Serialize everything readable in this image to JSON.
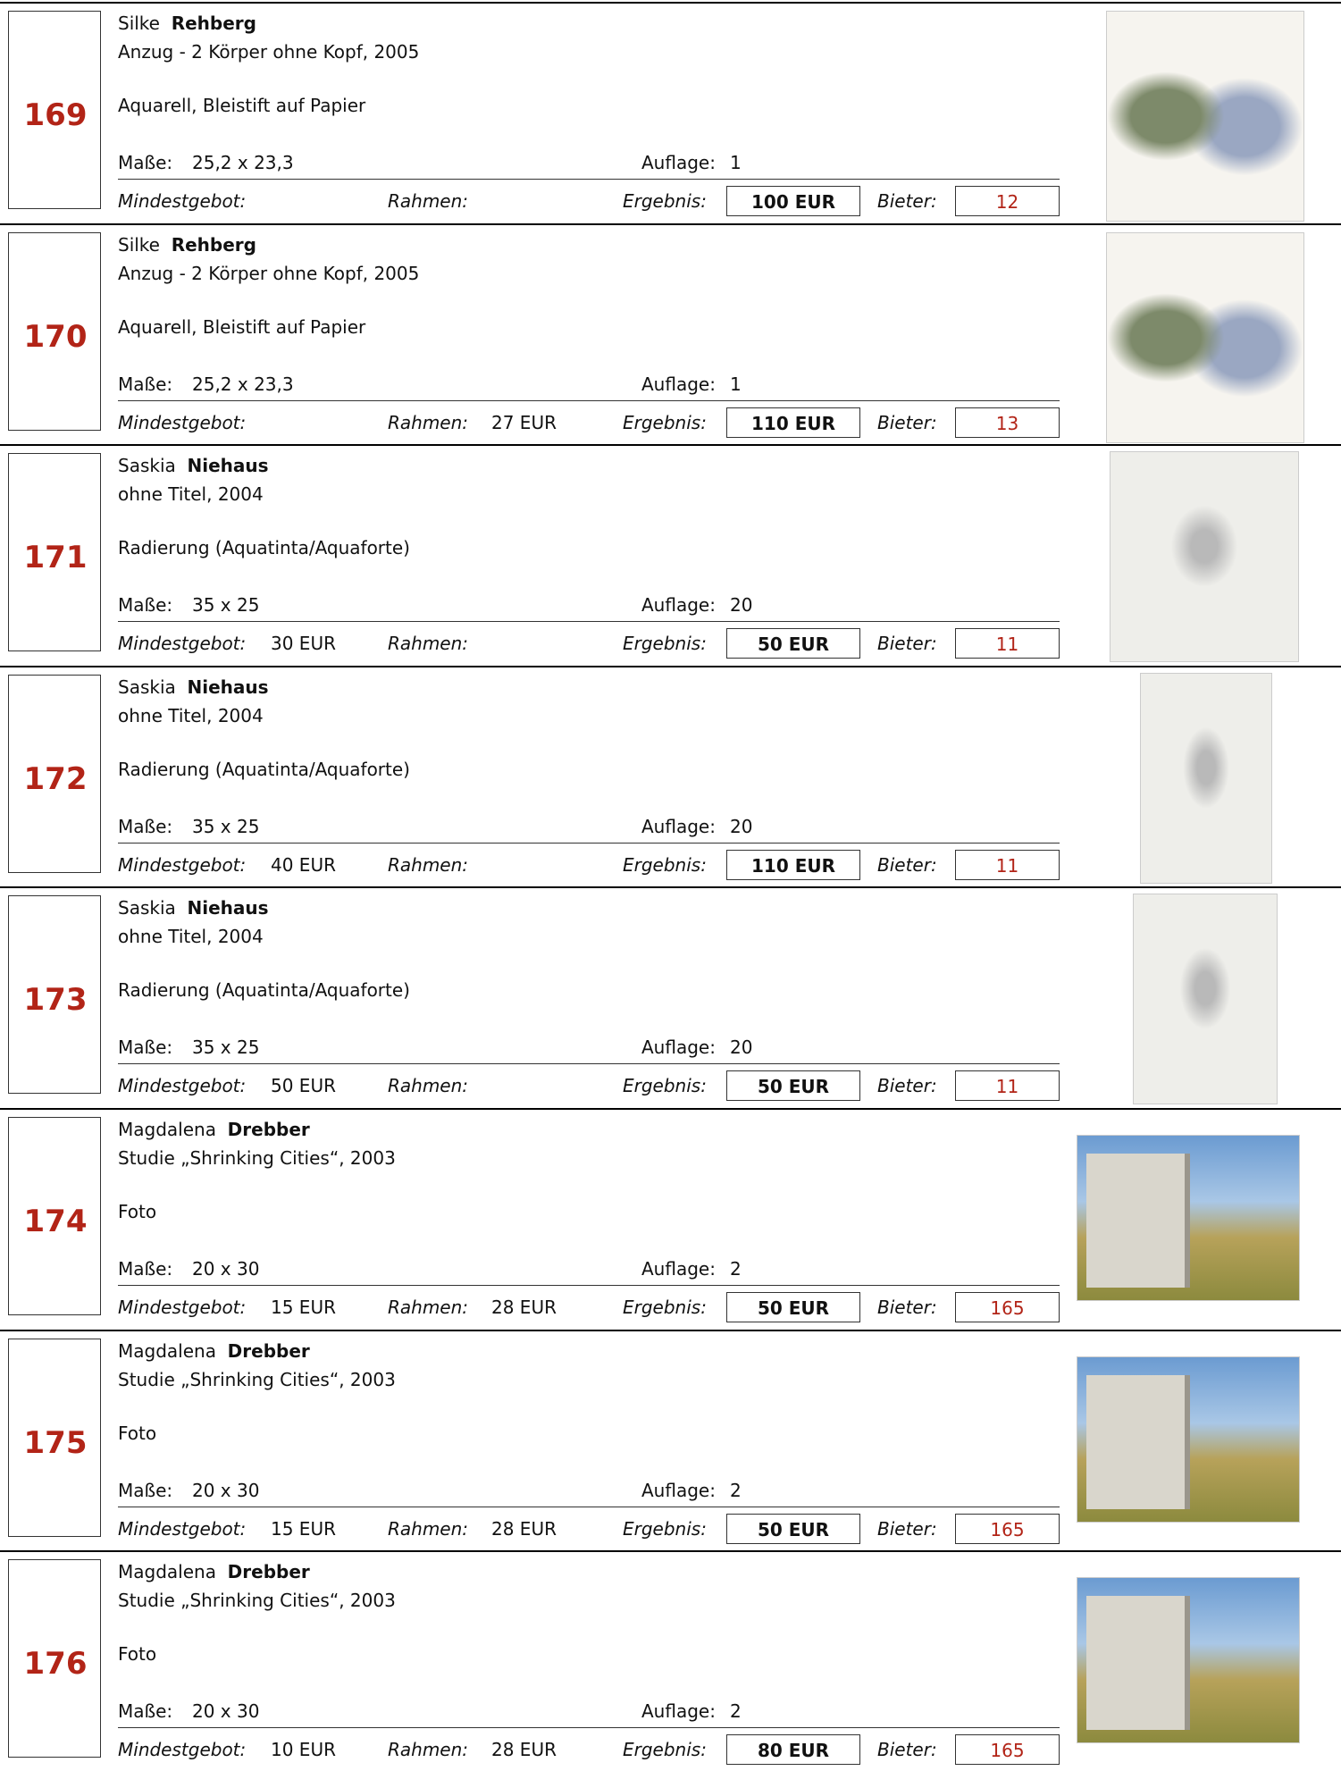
{
  "labels": {
    "dimensions": "Maße:",
    "edition": "Auflage:",
    "min_bid": "Mindestgebot:",
    "frame": "Rahmen:",
    "result": "Ergebnis:",
    "bidder": "Bieter:"
  },
  "items": [
    {
      "number": "169",
      "first_name": "Silke",
      "last_name": "Rehberg",
      "title": "Anzug - 2 Körper ohne Kopf, 2005",
      "technique": "Aquarell, Bleistift auf Papier",
      "dimensions": "25,2 x 23,3",
      "edition": "1",
      "result": "100 EUR",
      "bidder": "12"
    },
    {
      "number": "170",
      "first_name": "Silke",
      "last_name": "Rehberg",
      "title": "Anzug - 2 Körper ohne Kopf, 2005",
      "technique": "Aquarell, Bleistift auf Papier",
      "dimensions": "25,2 x 23,3",
      "edition": "1",
      "frame": "27 EUR",
      "result": "110 EUR",
      "bidder": "13"
    },
    {
      "number": "171",
      "first_name": "Saskia",
      "last_name": "Niehaus",
      "title": "ohne Titel, 2004",
      "technique": "Radierung (Aquatinta/Aquaforte)",
      "dimensions": "35 x 25",
      "edition": "20",
      "min_bid": "30 EUR",
      "result": "50 EUR",
      "bidder": "11"
    },
    {
      "number": "172",
      "first_name": "Saskia",
      "last_name": "Niehaus",
      "title": "ohne Titel, 2004",
      "technique": "Radierung (Aquatinta/Aquaforte)",
      "dimensions": "35 x 25",
      "edition": "20",
      "min_bid": "40 EUR",
      "result": "110 EUR",
      "bidder": "11"
    },
    {
      "number": "173",
      "first_name": "Saskia",
      "last_name": "Niehaus",
      "title": "ohne Titel, 2004",
      "technique": "Radierung (Aquatinta/Aquaforte)",
      "dimensions": "35 x 25",
      "edition": "20",
      "min_bid": "50 EUR",
      "result": "50 EUR",
      "bidder": "11"
    },
    {
      "number": "174",
      "first_name": "Magdalena",
      "last_name": "Drebber",
      "title": "Studie „Shrinking Cities“, 2003",
      "technique": "Foto",
      "dimensions": "20 x 30",
      "edition": "2",
      "min_bid": "15 EUR",
      "frame": "28 EUR",
      "result": "50 EUR",
      "bidder": "165"
    },
    {
      "number": "175",
      "first_name": "Magdalena",
      "last_name": "Drebber",
      "title": "Studie „Shrinking Cities“, 2003",
      "technique": "Foto",
      "dimensions": "20 x 30",
      "edition": "2",
      "min_bid": "15 EUR",
      "frame": "28 EUR",
      "result": "50 EUR",
      "bidder": "165"
    },
    {
      "number": "176",
      "first_name": "Magdalena",
      "last_name": "Drebber",
      "title": "Studie „Shrinking Cities“, 2003",
      "technique": "Foto",
      "dimensions": "20 x 30",
      "edition": "2",
      "min_bid": "10 EUR",
      "frame": "28 EUR",
      "result": "80 EUR",
      "bidder": "165"
    }
  ]
}
